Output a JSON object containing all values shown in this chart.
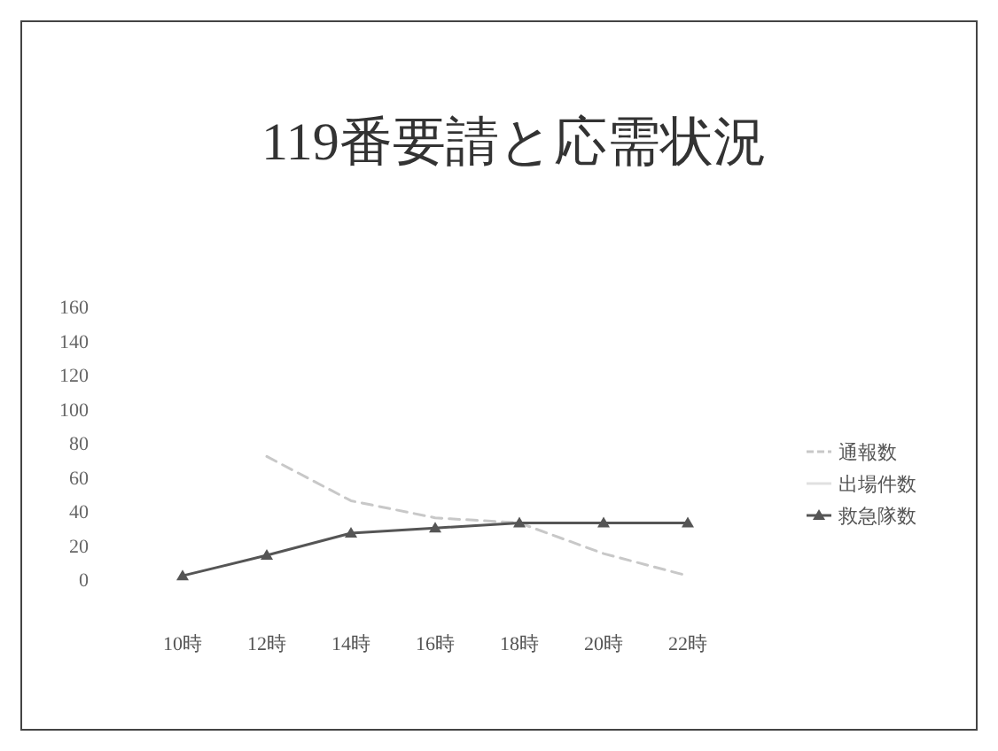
{
  "chart_data": {
    "type": "line",
    "title": "119番要請と応需状況",
    "categories": [
      "10時",
      "12時",
      "14時",
      "16時",
      "18時",
      "20時",
      "22時"
    ],
    "series": [
      {
        "name": "通報数",
        "color": "#c8c8c8",
        "line_style": "dashed",
        "marker": "none",
        "values": [
          null,
          72,
          46,
          36,
          33,
          15,
          2
        ]
      },
      {
        "name": "出場件数",
        "color": "#e0e0e0",
        "line_style": "solid",
        "marker": "none",
        "values": [
          null,
          null,
          null,
          null,
          null,
          null,
          null
        ]
      },
      {
        "name": "救急隊数",
        "color": "#555555",
        "line_style": "solid",
        "marker": "triangle",
        "values": [
          2,
          14,
          27,
          30,
          33,
          33,
          33
        ]
      }
    ],
    "ylim": [
      0,
      160
    ],
    "yticks": [
      0,
      20,
      40,
      60,
      80,
      100,
      120,
      140,
      160
    ],
    "grid": false,
    "legend": "right"
  }
}
